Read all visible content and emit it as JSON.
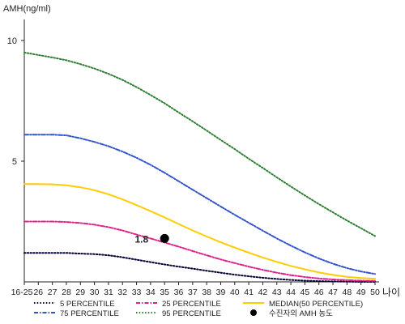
{
  "chart_data": {
    "type": "line",
    "ylabel": "AMH(ng/ml)",
    "xlabel": "나이",
    "ylim": [
      0,
      10
    ],
    "yticks": [
      5,
      10
    ],
    "x_ticks": [
      "16-25",
      "26",
      "27",
      "28",
      "29",
      "30",
      "31",
      "32",
      "33",
      "34",
      "35",
      "36",
      "37",
      "38",
      "39",
      "40",
      "41",
      "42",
      "43",
      "44",
      "45",
      "46",
      "47",
      "48",
      "49",
      "50"
    ],
    "xlim": [
      25,
      50
    ],
    "grid": false,
    "legend_position": "bottom",
    "series": [
      {
        "name": "5 PERCENTILE",
        "color": "#000033",
        "dash": "dot",
        "points": [
          [
            25,
            1.2
          ],
          [
            26,
            1.2
          ],
          [
            27,
            1.2
          ],
          [
            28,
            1.2
          ],
          [
            29,
            1.17
          ],
          [
            30,
            1.15
          ],
          [
            31,
            1.1
          ],
          [
            32,
            1.02
          ],
          [
            33,
            0.92
          ],
          [
            34,
            0.82
          ],
          [
            35,
            0.72
          ],
          [
            36,
            0.63
          ],
          [
            37,
            0.55
          ],
          [
            38,
            0.46
          ],
          [
            39,
            0.38
          ],
          [
            40,
            0.3
          ],
          [
            41,
            0.23
          ],
          [
            42,
            0.17
          ],
          [
            43,
            0.12
          ],
          [
            44,
            0.08
          ],
          [
            45,
            0.05
          ],
          [
            46,
            0.03
          ],
          [
            47,
            0.02
          ],
          [
            48,
            0.01
          ],
          [
            49,
            0.0
          ],
          [
            50,
            0.0
          ]
        ]
      },
      {
        "name": "25 PERCENTILE",
        "color": "#e0218a",
        "dash": "dashdot",
        "points": [
          [
            25,
            2.5
          ],
          [
            26,
            2.5
          ],
          [
            27,
            2.5
          ],
          [
            28,
            2.48
          ],
          [
            29,
            2.44
          ],
          [
            30,
            2.37
          ],
          [
            31,
            2.27
          ],
          [
            32,
            2.13
          ],
          [
            33,
            1.96
          ],
          [
            34,
            1.8
          ],
          [
            35,
            1.63
          ],
          [
            36,
            1.46
          ],
          [
            37,
            1.28
          ],
          [
            38,
            1.1
          ],
          [
            39,
            0.93
          ],
          [
            40,
            0.78
          ],
          [
            41,
            0.63
          ],
          [
            42,
            0.5
          ],
          [
            43,
            0.38
          ],
          [
            44,
            0.28
          ],
          [
            45,
            0.2
          ],
          [
            46,
            0.14
          ],
          [
            47,
            0.1
          ],
          [
            48,
            0.07
          ],
          [
            49,
            0.05
          ],
          [
            50,
            0.04
          ]
        ]
      },
      {
        "name": "MEDIAN(50 PERCENTILE)",
        "color": "#ffcc00",
        "dash": "solid",
        "points": [
          [
            25,
            4.05
          ],
          [
            26,
            4.05
          ],
          [
            27,
            4.04
          ],
          [
            28,
            4.0
          ],
          [
            29,
            3.92
          ],
          [
            30,
            3.8
          ],
          [
            31,
            3.63
          ],
          [
            32,
            3.42
          ],
          [
            33,
            3.18
          ],
          [
            34,
            2.93
          ],
          [
            35,
            2.67
          ],
          [
            36,
            2.4
          ],
          [
            37,
            2.13
          ],
          [
            38,
            1.88
          ],
          [
            39,
            1.64
          ],
          [
            40,
            1.42
          ],
          [
            41,
            1.21
          ],
          [
            42,
            1.01
          ],
          [
            43,
            0.83
          ],
          [
            44,
            0.66
          ],
          [
            45,
            0.52
          ],
          [
            46,
            0.39
          ],
          [
            47,
            0.29
          ],
          [
            48,
            0.21
          ],
          [
            49,
            0.16
          ],
          [
            50,
            0.13
          ]
        ]
      },
      {
        "name": "75 PERCENTILE",
        "color": "#3355cc",
        "dash": "dashdot",
        "points": [
          [
            25,
            6.1
          ],
          [
            26,
            6.1
          ],
          [
            27,
            6.1
          ],
          [
            28,
            6.07
          ],
          [
            29,
            5.95
          ],
          [
            30,
            5.8
          ],
          [
            31,
            5.62
          ],
          [
            32,
            5.4
          ],
          [
            33,
            5.14
          ],
          [
            34,
            4.85
          ],
          [
            35,
            4.52
          ],
          [
            36,
            4.17
          ],
          [
            37,
            3.82
          ],
          [
            38,
            3.47
          ],
          [
            39,
            3.12
          ],
          [
            40,
            2.78
          ],
          [
            41,
            2.45
          ],
          [
            42,
            2.12
          ],
          [
            43,
            1.8
          ],
          [
            44,
            1.5
          ],
          [
            45,
            1.22
          ],
          [
            46,
            0.97
          ],
          [
            47,
            0.75
          ],
          [
            48,
            0.57
          ],
          [
            49,
            0.43
          ],
          [
            50,
            0.33
          ]
        ]
      },
      {
        "name": "95 PERCENTILE",
        "color": "#2e7d32",
        "dash": "dot",
        "points": [
          [
            25,
            9.5
          ],
          [
            26,
            9.4
          ],
          [
            27,
            9.3
          ],
          [
            28,
            9.18
          ],
          [
            29,
            9.02
          ],
          [
            30,
            8.84
          ],
          [
            31,
            8.62
          ],
          [
            32,
            8.37
          ],
          [
            33,
            8.07
          ],
          [
            34,
            7.74
          ],
          [
            35,
            7.4
          ],
          [
            36,
            7.02
          ],
          [
            37,
            6.65
          ],
          [
            38,
            6.27
          ],
          [
            39,
            5.88
          ],
          [
            40,
            5.5
          ],
          [
            41,
            5.1
          ],
          [
            42,
            4.72
          ],
          [
            43,
            4.33
          ],
          [
            44,
            3.95
          ],
          [
            45,
            3.58
          ],
          [
            46,
            3.22
          ],
          [
            47,
            2.88
          ],
          [
            48,
            2.54
          ],
          [
            49,
            2.22
          ],
          [
            50,
            1.9
          ]
        ]
      }
    ],
    "marker": {
      "name": "수진자의 AMH 농도",
      "x": 35,
      "y": 1.8,
      "label": "1.8",
      "color": "#000000"
    },
    "legend_rows": [
      [
        "5 PERCENTILE",
        "25 PERCENTILE",
        "MEDIAN(50 PERCENTILE)"
      ],
      [
        "75 PERCENTILE",
        "95 PERCENTILE",
        "수진자의 AMH 농도"
      ]
    ]
  }
}
